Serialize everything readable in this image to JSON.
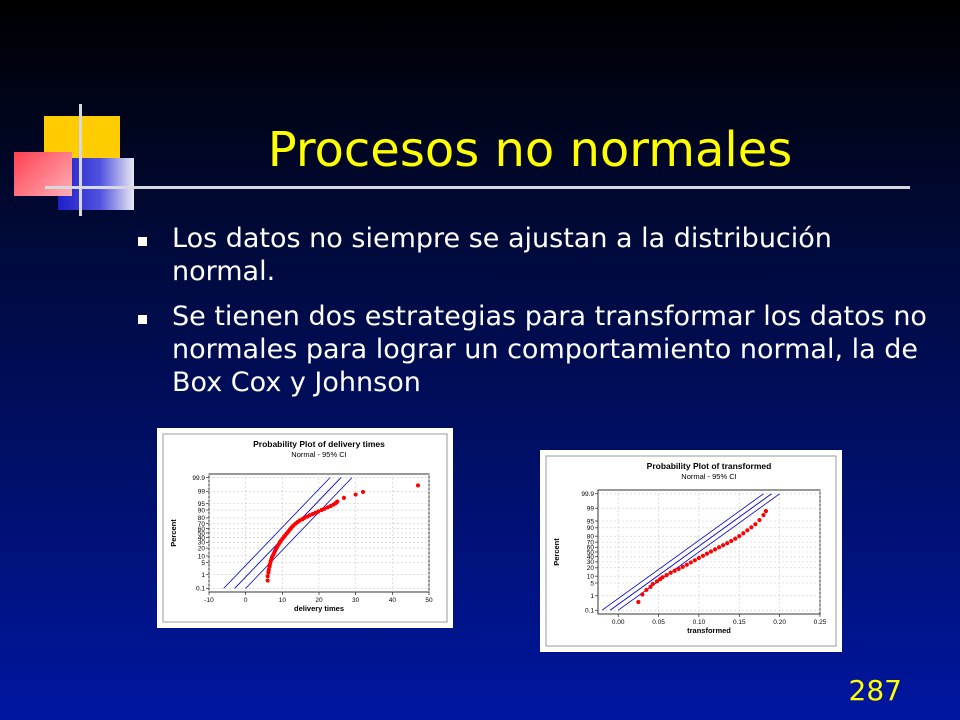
{
  "slide": {
    "title": "Procesos no normales",
    "bullets": [
      "Los datos no siempre se ajustan a la distribución normal.",
      "Se tienen dos estrategias para transformar los datos no normales para lograr un comportamiento normal, la de Box Cox y Johnson"
    ],
    "page_number": "287"
  },
  "colors": {
    "title": "#ffff00",
    "text": "#ffffff",
    "points": "#ff0000",
    "ci_lines": "#0000cc"
  },
  "chart_data": [
    {
      "type": "scatter",
      "title": "Probability Plot of delivery times",
      "subtitle": "Normal - 95% CI",
      "xlabel": "delivery times",
      "ylabel": "Percent",
      "xlim": [
        -10,
        50
      ],
      "xticks": [
        "-10",
        "0",
        "10",
        "20",
        "30",
        "40",
        "50"
      ],
      "yticks": [
        "0.1",
        "1",
        "5",
        "10",
        "20",
        "30",
        "40",
        "50",
        "60",
        "70",
        "80",
        "90",
        "95",
        "99",
        "99.9"
      ],
      "y_scale": "normal-probability",
      "grid": true,
      "fit_line": [
        [
          -3,
          0.1
        ],
        [
          26,
          99.9
        ]
      ],
      "ci_bands": [
        [
          [
            -6,
            0.1
          ],
          [
            23,
            99.9
          ]
        ],
        [
          [
            0,
            0.1
          ],
          [
            29,
            99.9
          ]
        ]
      ],
      "points": [
        [
          6.0,
          0.4
        ],
        [
          6.0,
          0.8
        ],
        [
          6.2,
          1.4
        ],
        [
          6.3,
          2.0
        ],
        [
          6.5,
          3.0
        ],
        [
          6.6,
          4.0
        ],
        [
          6.8,
          5.5
        ],
        [
          7.0,
          7.0
        ],
        [
          7.2,
          9.0
        ],
        [
          7.5,
          11.0
        ],
        [
          7.8,
          13.5
        ],
        [
          8.0,
          16.0
        ],
        [
          8.3,
          19.0
        ],
        [
          8.6,
          22.0
        ],
        [
          9.0,
          26.0
        ],
        [
          9.3,
          30.0
        ],
        [
          9.7,
          34.0
        ],
        [
          10.1,
          38.0
        ],
        [
          10.5,
          42.0
        ],
        [
          10.9,
          46.0
        ],
        [
          11.3,
          50.0
        ],
        [
          11.7,
          54.0
        ],
        [
          12.1,
          58.0
        ],
        [
          12.5,
          62.0
        ],
        [
          13.0,
          66.0
        ],
        [
          13.6,
          70.0
        ],
        [
          14.2,
          73.0
        ],
        [
          14.8,
          76.0
        ],
        [
          15.5,
          78.0
        ],
        [
          16.0,
          80.0
        ],
        [
          16.8,
          82.0
        ],
        [
          17.5,
          84.0
        ],
        [
          18.3,
          85.5
        ],
        [
          19.0,
          87.0
        ],
        [
          19.8,
          88.5
        ],
        [
          20.7,
          90.0
        ],
        [
          21.5,
          91.2
        ],
        [
          22.4,
          92.4
        ],
        [
          23.2,
          93.4
        ],
        [
          24.0,
          94.4
        ],
        [
          24.6,
          95.3
        ],
        [
          25.0,
          96.0
        ],
        [
          26.8,
          97.5
        ],
        [
          30.0,
          98.4
        ],
        [
          32.0,
          98.9
        ],
        [
          47.0,
          99.6
        ]
      ]
    },
    {
      "type": "scatter",
      "title": "Probability Plot of transformed",
      "subtitle": "Normal - 95% CI",
      "xlabel": "transformed",
      "ylabel": "Percent",
      "xlim": [
        -0.025,
        0.25
      ],
      "xticks": [
        "0.00",
        "0.05",
        "0.10",
        "0.15",
        "0.20",
        "0.25"
      ],
      "yticks": [
        "0.1",
        "1",
        "5",
        "10",
        "20",
        "30",
        "40",
        "50",
        "60",
        "70",
        "80",
        "90",
        "95",
        "99",
        "99.9"
      ],
      "y_scale": "normal-probability",
      "grid": true,
      "fit_line": [
        [
          -0.01,
          0.1
        ],
        [
          0.19,
          99.9
        ]
      ],
      "ci_bands": [
        [
          [
            -0.02,
            0.1
          ],
          [
            0.18,
            99.9
          ]
        ],
        [
          [
            0.0,
            0.1
          ],
          [
            0.2,
            99.9
          ]
        ]
      ],
      "points": [
        [
          0.025,
          0.4
        ],
        [
          0.03,
          1.2
        ],
        [
          0.035,
          2.2
        ],
        [
          0.04,
          3.2
        ],
        [
          0.043,
          4.5
        ],
        [
          0.048,
          6.0
        ],
        [
          0.052,
          7.5
        ],
        [
          0.055,
          9.0
        ],
        [
          0.06,
          11.0
        ],
        [
          0.065,
          13.5
        ],
        [
          0.07,
          16.0
        ],
        [
          0.075,
          18.5
        ],
        [
          0.08,
          21.5
        ],
        [
          0.085,
          25.0
        ],
        [
          0.09,
          29.0
        ],
        [
          0.095,
          33.0
        ],
        [
          0.1,
          37.5
        ],
        [
          0.105,
          42.0
        ],
        [
          0.11,
          46.5
        ],
        [
          0.115,
          51.0
        ],
        [
          0.12,
          55.5
        ],
        [
          0.125,
          60.0
        ],
        [
          0.13,
          64.0
        ],
        [
          0.135,
          68.0
        ],
        [
          0.14,
          72.0
        ],
        [
          0.145,
          76.0
        ],
        [
          0.15,
          80.0
        ],
        [
          0.155,
          84.0
        ],
        [
          0.16,
          87.5
        ],
        [
          0.165,
          90.5
        ],
        [
          0.17,
          93.0
        ],
        [
          0.175,
          95.5
        ],
        [
          0.18,
          97.5
        ],
        [
          0.183,
          98.5
        ]
      ]
    }
  ]
}
